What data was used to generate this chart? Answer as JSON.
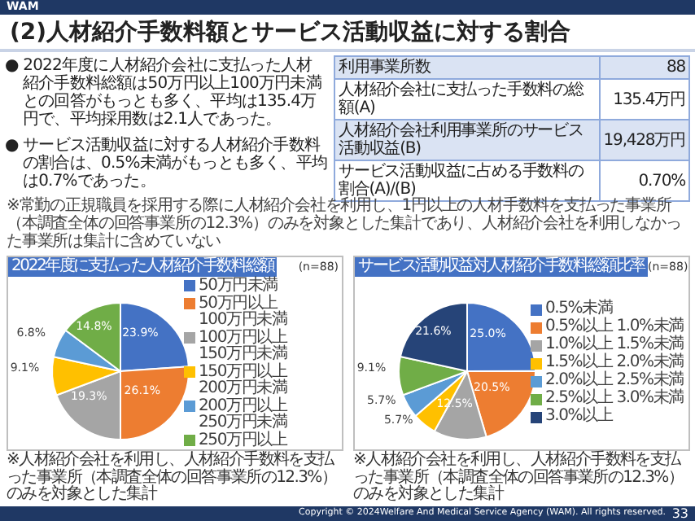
{
  "chart_data": [
    {
      "type": "other",
      "title": "(2)人材紹介手数料額とサービス活動収益に対する割合",
      "annotations": [
        "WAM",
        "● 2022年度に人材紹介会社に支払った人材紹介手数料総額は50万円以上100万円未満との回答がもっとも多く、平均は135.4万円で、平均採用数は2.1人であった。",
        "● サービス活動収益に対する人材紹介手数料の割合は、0.5%未満がもっとも多く、平均は0.7%であった。",
        "利用事業所数",
        "88",
        "人材紹介会社に支払った手数料の総額(A)",
        "135.4万円",
        "人材紹介会社利用事業所のサービス活動収益(B)",
        "19,428万円",
        "サービス活動収益に占める手数料の割合(A)/(B)",
        "0.70%",
        "※常勤の正規職員を採用する際に人材紹介会社を利用し、1円以上の人材手数料を支払った事業所（本調査全体の回答事業所の12.3%）のみを対象とした集計であり、人材紹介会社を利用しなかった事業所は集計に含めていない",
        "Copyright © 2024Welfare And Medical Service Agency (WAM). All rights reserved.",
        "33"
      ]
    },
    {
      "type": "pie",
      "title": "2022年度に支払った人材紹介手数料総額",
      "subtitle": "(n=88)",
      "legend": "right",
      "categories": [
        "50万円未満",
        "50万円以上\n100万円未満",
        "100万円以上\n150万円未満",
        "150万円以上\n200万円未満",
        "200万円以上\n250万円未満",
        "250万円以上"
      ],
      "values": [
        23.9,
        26.1,
        19.3,
        9.1,
        6.8,
        14.8
      ],
      "value_labels": [
        "23.9%",
        "26.1%",
        "19.3%",
        "9.1%",
        "6.8%",
        "14.8%"
      ],
      "colors": [
        "#4472c4",
        "#ed7d31",
        "#a5a5a5",
        "#ffc000",
        "#5b9bd5",
        "#70ad47"
      ],
      "annotations": [
        "※人材紹介会社を利用し、人材紹介手数料を支払った事業所（本調査全体の回答事業所の12.3%）のみを対象とした集計"
      ]
    },
    {
      "type": "pie",
      "title": "サービス活動収益対人材紹介手数料総額比率",
      "subtitle": "(n=88)",
      "legend": "right",
      "categories": [
        "0.5%未満",
        "0.5%以上\n1.0%未満",
        "1.0%以上\n1.5%未満",
        "1.5%以上\n2.0%未満",
        "2.0%以上\n2.5%未満",
        "2.5%以上\n3.0%未満",
        "3.0%以上"
      ],
      "values": [
        25.0,
        20.5,
        12.5,
        5.7,
        5.7,
        9.1,
        21.6
      ],
      "value_labels": [
        "25.0%",
        "20.5%",
        "12.5%",
        "5.7%",
        "5.7%",
        "9.1%",
        "21.6%"
      ],
      "colors": [
        "#4472c4",
        "#ed7d31",
        "#a5a5a5",
        "#ffc000",
        "#5b9bd5",
        "#70ad47",
        "#264478"
      ],
      "annotations": [
        "※人材紹介会社を利用し、人材紹介手数料を支払った事業所（本調査全体の回答事業所の12.3%）のみを対象とした集計"
      ]
    }
  ]
}
